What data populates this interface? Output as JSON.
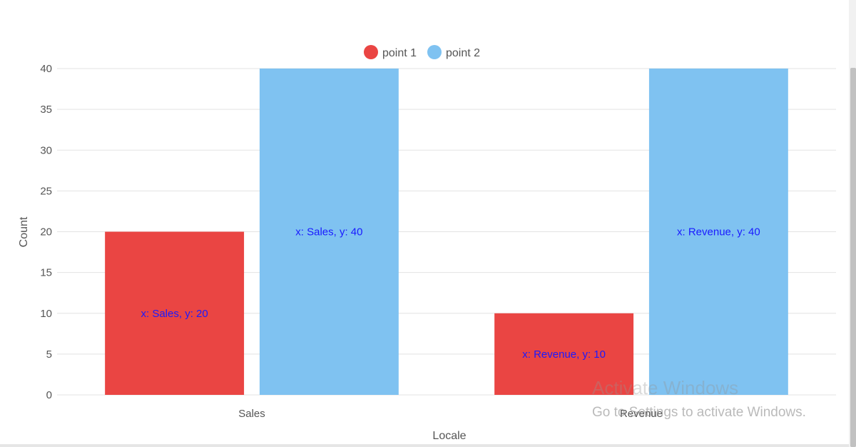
{
  "chart_data": {
    "type": "bar",
    "categories": [
      "Sales",
      "Revenue"
    ],
    "series": [
      {
        "name": "point 1",
        "values": [
          20,
          10
        ],
        "color": "#ea4543",
        "labels": [
          "x: Sales, y: 20",
          "x: Revenue, y: 10"
        ]
      },
      {
        "name": "point 2",
        "values": [
          40,
          40
        ],
        "color": "#7fc2f1",
        "labels": [
          "x: Sales, y: 40",
          "x: Revenue, y: 40"
        ]
      }
    ],
    "yticks": [
      "0",
      "5",
      "10",
      "15",
      "20",
      "25",
      "30",
      "35",
      "40"
    ],
    "ylim": [
      0,
      40
    ],
    "xlabel": "Locale",
    "ylabel": "Count",
    "legend_position": "top-center",
    "grid": true,
    "data_label_color": "#1a1aff"
  },
  "watermark": {
    "title": "Activate Windows",
    "subtitle": "Go to Settings to activate Windows."
  }
}
